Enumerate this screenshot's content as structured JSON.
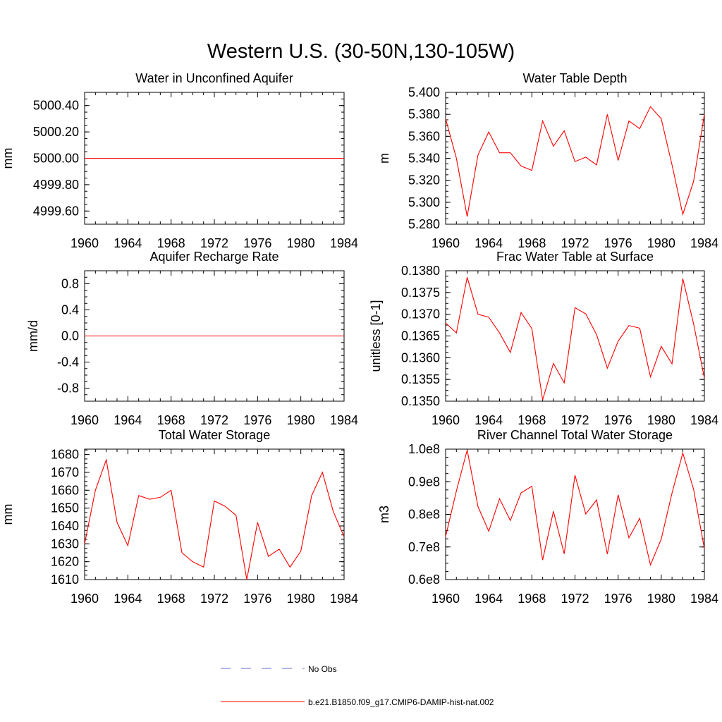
{
  "figure": {
    "title": "Western U.S. (30-50N,130-105W)"
  },
  "legend": {
    "obs_label": "No Obs",
    "model_label": "b.e21.B1850.f09_g17.CMIP6-DAMIP-hist-nat.002",
    "obs_color": "#6b6bc8",
    "model_color": "#ff0000"
  },
  "chart_data": [
    {
      "type": "line",
      "title": "Water in Unconfined Aquifer",
      "ylabel": "mm",
      "xlabel": "",
      "xlim": [
        1960,
        1984
      ],
      "ylim": [
        4999.5,
        5000.5
      ],
      "xticks": [
        1960,
        1964,
        1968,
        1972,
        1976,
        1980,
        1984
      ],
      "yticks": [
        4999.6,
        4999.8,
        5000.0,
        5000.2,
        5000.4
      ],
      "ytick_labels": [
        "4999.60",
        "4999.80",
        "5000.00",
        "5000.20",
        "5000.40"
      ],
      "x": [
        1960,
        1961,
        1962,
        1963,
        1964,
        1965,
        1966,
        1967,
        1968,
        1969,
        1970,
        1971,
        1972,
        1973,
        1974,
        1975,
        1976,
        1977,
        1978,
        1979,
        1980,
        1981,
        1982,
        1983,
        1984
      ],
      "series": [
        {
          "values": [
            5000.0,
            5000.0,
            5000.0,
            5000.0,
            5000.0,
            5000.0,
            5000.0,
            5000.0,
            5000.0,
            5000.0,
            5000.0,
            5000.0,
            5000.0,
            5000.0,
            5000.0,
            5000.0,
            5000.0,
            5000.0,
            5000.0,
            5000.0,
            5000.0,
            5000.0,
            5000.0,
            5000.0,
            5000.0
          ]
        }
      ]
    },
    {
      "type": "line",
      "title": "Water Table Depth",
      "ylabel": "m",
      "xlabel": "",
      "xlim": [
        1960,
        1984
      ],
      "ylim": [
        5.28,
        5.4
      ],
      "xticks": [
        1960,
        1964,
        1968,
        1972,
        1976,
        1980,
        1984
      ],
      "yticks": [
        5.28,
        5.3,
        5.32,
        5.34,
        5.36,
        5.38,
        5.4
      ],
      "ytick_labels": [
        "5.280",
        "5.300",
        "5.320",
        "5.340",
        "5.360",
        "5.380",
        "5.400"
      ],
      "x": [
        1960,
        1961,
        1962,
        1963,
        1964,
        1965,
        1966,
        1967,
        1968,
        1969,
        1970,
        1971,
        1972,
        1973,
        1974,
        1975,
        1976,
        1977,
        1978,
        1979,
        1980,
        1981,
        1982,
        1983,
        1984
      ],
      "series": [
        {
          "values": [
            5.376,
            5.34,
            5.287,
            5.343,
            5.364,
            5.345,
            5.345,
            5.333,
            5.329,
            5.374,
            5.351,
            5.365,
            5.337,
            5.341,
            5.334,
            5.38,
            5.338,
            5.374,
            5.367,
            5.387,
            5.376,
            5.334,
            5.289,
            5.319,
            5.38
          ]
        }
      ]
    },
    {
      "type": "line",
      "title": "Aquifer Recharge Rate",
      "ylabel": "mm/d",
      "xlabel": "",
      "xlim": [
        1960,
        1984
      ],
      "ylim": [
        -1.0,
        1.0
      ],
      "xticks": [
        1960,
        1964,
        1968,
        1972,
        1976,
        1980,
        1984
      ],
      "yticks": [
        -0.8,
        -0.4,
        0.0,
        0.4,
        0.8
      ],
      "ytick_labels": [
        "-0.8",
        "-0.4",
        "0.0",
        "0.4",
        "0.8"
      ],
      "x": [
        1960,
        1961,
        1962,
        1963,
        1964,
        1965,
        1966,
        1967,
        1968,
        1969,
        1970,
        1971,
        1972,
        1973,
        1974,
        1975,
        1976,
        1977,
        1978,
        1979,
        1980,
        1981,
        1982,
        1983,
        1984
      ],
      "series": [
        {
          "values": [
            0.0,
            0.0,
            0.0,
            0.0,
            0.0,
            0.0,
            0.0,
            0.0,
            0.0,
            0.0,
            0.0,
            0.0,
            0.0,
            0.0,
            0.0,
            0.0,
            0.0,
            0.0,
            0.0,
            0.0,
            0.0,
            0.0,
            0.0,
            0.0,
            0.0
          ]
        }
      ]
    },
    {
      "type": "line",
      "title": "Frac Water Table at Surface",
      "ylabel": "unitless [0-1]",
      "xlabel": "",
      "xlim": [
        1960,
        1984
      ],
      "ylim": [
        0.135,
        0.138
      ],
      "xticks": [
        1960,
        1964,
        1968,
        1972,
        1976,
        1980,
        1984
      ],
      "yticks": [
        0.135,
        0.1355,
        0.136,
        0.1365,
        0.137,
        0.1375,
        0.138
      ],
      "ytick_labels": [
        "0.1350",
        "0.1355",
        "0.1360",
        "0.1365",
        "0.1370",
        "0.1375",
        "0.1380"
      ],
      "x": [
        1960,
        1961,
        1962,
        1963,
        1964,
        1965,
        1966,
        1967,
        1968,
        1969,
        1970,
        1971,
        1972,
        1973,
        1974,
        1975,
        1976,
        1977,
        1978,
        1979,
        1980,
        1981,
        1982,
        1983,
        1984
      ],
      "series": [
        {
          "values": [
            0.1368,
            0.13657,
            0.13785,
            0.137,
            0.13693,
            0.13657,
            0.13612,
            0.13704,
            0.13667,
            0.13503,
            0.13587,
            0.13542,
            0.13715,
            0.13701,
            0.13653,
            0.13576,
            0.13638,
            0.13674,
            0.13668,
            0.13556,
            0.13626,
            0.13586,
            0.13782,
            0.13678,
            0.13553
          ]
        }
      ]
    },
    {
      "type": "line",
      "title": "Total Water Storage",
      "ylabel": "mm",
      "xlabel": "",
      "xlim": [
        1960,
        1984
      ],
      "ylim": [
        1610,
        1683
      ],
      "xticks": [
        1960,
        1964,
        1968,
        1972,
        1976,
        1980,
        1984
      ],
      "yticks": [
        1610,
        1620,
        1630,
        1640,
        1650,
        1660,
        1670,
        1680
      ],
      "ytick_labels": [
        "1610",
        "1620",
        "1630",
        "1640",
        "1650",
        "1660",
        "1670",
        "1680"
      ],
      "x": [
        1960,
        1961,
        1962,
        1963,
        1964,
        1965,
        1966,
        1967,
        1968,
        1969,
        1970,
        1971,
        1972,
        1973,
        1974,
        1975,
        1976,
        1977,
        1978,
        1979,
        1980,
        1981,
        1982,
        1983,
        1984
      ],
      "series": [
        {
          "values": [
            1630,
            1660,
            1677,
            1642,
            1629,
            1657,
            1655,
            1656,
            1660,
            1625,
            1620,
            1617,
            1654,
            1651,
            1646,
            1610,
            1642,
            1623,
            1627,
            1617,
            1626,
            1657,
            1670,
            1648,
            1634
          ]
        }
      ]
    },
    {
      "type": "line",
      "title": "River Channel Total Water Storage",
      "ylabel": "m3",
      "xlabel": "",
      "xlim": [
        1960,
        1984
      ],
      "ylim": [
        60000000,
        100000000
      ],
      "xticks": [
        1960,
        1964,
        1968,
        1972,
        1976,
        1980,
        1984
      ],
      "yticks": [
        60000000,
        70000000,
        80000000,
        90000000,
        100000000
      ],
      "ytick_labels": [
        "0.6e8",
        "0.7e8",
        "0.8e8",
        "0.9e8",
        "1.0e8"
      ],
      "x": [
        1960,
        1961,
        1962,
        1963,
        1964,
        1965,
        1966,
        1967,
        1968,
        1969,
        1970,
        1971,
        1972,
        1973,
        1974,
        1975,
        1976,
        1977,
        1978,
        1979,
        1980,
        1981,
        1982,
        1983,
        1984
      ],
      "series": [
        {
          "values": [
            73200000,
            87200000,
            99700000,
            82400000,
            74800000,
            84800000,
            78100000,
            86600000,
            88600000,
            66000000,
            80900000,
            67900000,
            92000000,
            80100000,
            84400000,
            67800000,
            86000000,
            72800000,
            78800000,
            64500000,
            72400000,
            86500000,
            98800000,
            87700000,
            69500000
          ]
        }
      ]
    }
  ]
}
